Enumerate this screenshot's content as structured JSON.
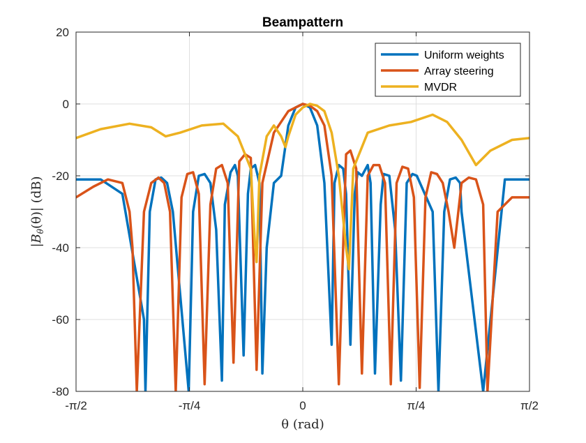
{
  "chart_data": {
    "type": "line",
    "title": "Beampattern",
    "xlabel": "θ (rad)",
    "ylabel": "|B_θ(θ)| (dB)",
    "ylabel_parts": {
      "pre": "|",
      "base": "B",
      "sub": "θ",
      "post": "(θ)| (dB)"
    },
    "xlim": [
      -1.5708,
      1.5708
    ],
    "ylim": [
      -80,
      20
    ],
    "xticks": [
      -1.5708,
      -0.7854,
      0,
      0.7854,
      1.5708
    ],
    "xtick_labels": [
      "-π/2",
      "-π/4",
      "0",
      "π/4",
      "π/2"
    ],
    "yticks": [
      -80,
      -60,
      -40,
      -20,
      0,
      20
    ],
    "ytick_labels": [
      "-80",
      "-60",
      "-40",
      "-20",
      "0",
      "20"
    ],
    "grid": true,
    "legend_position": "top-right",
    "series": [
      {
        "name": "Uniform weights",
        "color": "#0072BD",
        "x": [
          -1.5708,
          -1.4,
          -1.25,
          -1.1,
          -1.09,
          -1.06,
          -1.02,
          -0.98,
          -0.94,
          -0.9,
          -0.79,
          -0.76,
          -0.72,
          -0.68,
          -0.64,
          -0.6,
          -0.56,
          -0.54,
          -0.5,
          -0.47,
          -0.45,
          -0.41,
          -0.38,
          -0.36,
          -0.33,
          -0.3,
          -0.28,
          -0.25,
          -0.2,
          -0.15,
          -0.1,
          -0.05,
          0,
          0.05,
          0.1,
          0.15,
          0.2,
          0.22,
          0.25,
          0.28,
          0.3,
          0.33,
          0.36,
          0.38,
          0.41,
          0.45,
          0.47,
          0.5,
          0.54,
          0.56,
          0.6,
          0.64,
          0.68,
          0.72,
          0.76,
          0.79,
          0.9,
          0.94,
          0.98,
          1.02,
          1.06,
          1.09,
          1.1,
          1.25,
          1.4,
          1.5708
        ],
        "y": [
          -21,
          -21,
          -25,
          -60,
          -80,
          -30,
          -21,
          -20.5,
          -22,
          -30,
          -80,
          -30,
          -20,
          -19.5,
          -22,
          -35,
          -77,
          -28,
          -19,
          -17,
          -20,
          -70,
          -25,
          -18,
          -17,
          -22,
          -75,
          -40,
          -22,
          -20,
          -6,
          -1,
          0,
          -1,
          -6,
          -22,
          -67,
          -22,
          -17,
          -18,
          -25,
          -67,
          -25,
          -19,
          -20,
          -17,
          -22,
          -75,
          -28,
          -19.5,
          -20,
          -35,
          -77,
          -22,
          -19.5,
          -20,
          -30,
          -80,
          -30,
          -21,
          -20.5,
          -22,
          -30,
          -80,
          -21,
          -21
        ]
      },
      {
        "name": "Array steering",
        "color": "#D95319",
        "x": [
          -1.5708,
          -1.45,
          -1.35,
          -1.25,
          -1.2,
          -1.18,
          -1.15,
          -1.1,
          -1.05,
          -1.0,
          -0.96,
          -0.92,
          -0.88,
          -0.84,
          -0.8,
          -0.76,
          -0.72,
          -0.68,
          -0.64,
          -0.6,
          -0.56,
          -0.52,
          -0.48,
          -0.44,
          -0.4,
          -0.36,
          -0.32,
          -0.28,
          -0.2,
          -0.1,
          0,
          0.05,
          0.1,
          0.15,
          0.2,
          0.25,
          0.3,
          0.33,
          0.37,
          0.41,
          0.45,
          0.49,
          0.53,
          0.57,
          0.61,
          0.65,
          0.69,
          0.73,
          0.77,
          0.81,
          0.85,
          0.89,
          0.93,
          0.97,
          1.01,
          1.05,
          1.1,
          1.15,
          1.2,
          1.25,
          1.28,
          1.35,
          1.45,
          1.5708
        ],
        "y": [
          -26,
          -23,
          -21,
          -22,
          -30,
          -40,
          -80,
          -30,
          -22,
          -20.5,
          -22,
          -30,
          -80,
          -26,
          -19.5,
          -19,
          -25,
          -78,
          -28,
          -18,
          -17,
          -22,
          -72,
          -16,
          -14,
          -15,
          -74,
          -22,
          -8,
          -2,
          0,
          -0.5,
          -2,
          -6,
          -20,
          -78,
          -14,
          -13,
          -18,
          -75,
          -20,
          -17,
          -17,
          -22,
          -78,
          -22,
          -17.5,
          -18,
          -26,
          -79,
          -26,
          -19,
          -19.5,
          -22,
          -30,
          -40,
          -22,
          -20.5,
          -21,
          -28,
          -80,
          -30,
          -26,
          -26
        ]
      },
      {
        "name": "MVDR",
        "color": "#EDB120",
        "x": [
          -1.5708,
          -1.4,
          -1.2,
          -1.05,
          -0.95,
          -0.85,
          -0.7,
          -0.55,
          -0.45,
          -0.36,
          -0.33,
          -0.32,
          -0.3,
          -0.25,
          -0.2,
          -0.15,
          -0.12,
          -0.1,
          -0.05,
          0,
          0.05,
          0.1,
          0.15,
          0.2,
          0.25,
          0.3,
          0.32,
          0.35,
          0.45,
          0.6,
          0.75,
          0.9,
          1.0,
          1.1,
          1.2,
          1.3,
          1.45,
          1.5708
        ],
        "y": [
          -9.5,
          -7,
          -5.5,
          -6.5,
          -9,
          -8,
          -6,
          -5.5,
          -9,
          -18,
          -40,
          -44,
          -20,
          -9,
          -6,
          -9,
          -12,
          -9,
          -3,
          -1,
          0,
          -0.5,
          -2,
          -8,
          -20,
          -40,
          -46,
          -18,
          -8,
          -6,
          -5,
          -3,
          -5,
          -10,
          -17,
          -13,
          -10,
          -9.5
        ]
      }
    ]
  }
}
